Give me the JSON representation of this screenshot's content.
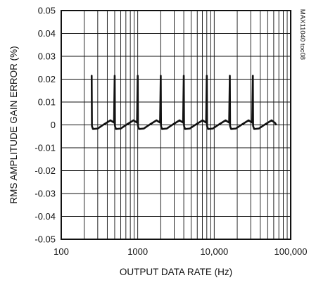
{
  "chart_data": {
    "type": "line",
    "title": "",
    "xlabel": "OUTPUT DATA RATE (Hz)",
    "ylabel": "RMS AMPLITUDE GAIN ERROR (%)",
    "x_scale": "log",
    "xlim": [
      100,
      100000
    ],
    "ylim": [
      -0.05,
      0.05
    ],
    "x_ticks": [
      100,
      1000,
      10000,
      100000
    ],
    "x_tick_labels": [
      "100",
      "1000",
      "10,000",
      "100,000"
    ],
    "y_ticks": [
      0.05,
      0.04,
      0.03,
      0.02,
      0.01,
      0,
      -0.01,
      -0.02,
      -0.03,
      -0.04,
      -0.05
    ],
    "y_tick_labels": [
      "0.05",
      "0.04",
      "0.03",
      "0.02",
      "0.01",
      "0",
      "-0.01",
      "-0.02",
      "-0.03",
      "-0.04",
      "-0.05"
    ],
    "grid": true,
    "watermark": "MAX11040 toc08",
    "series": [
      {
        "values": [
          [
            250,
            0.0215
          ],
          [
            252,
            -0.0005
          ],
          [
            260,
            -0.0018
          ],
          [
            300,
            -0.0016
          ],
          [
            360,
            0.0002
          ],
          [
            440,
            0.002
          ],
          [
            490,
            0.001
          ],
          [
            500,
            0.0215
          ],
          [
            504,
            -0.0005
          ],
          [
            520,
            -0.0018
          ],
          [
            600,
            -0.0016
          ],
          [
            720,
            0.0002
          ],
          [
            880,
            0.002
          ],
          [
            980,
            0.001
          ],
          [
            1000,
            0.0215
          ],
          [
            1008,
            -0.0005
          ],
          [
            1040,
            -0.0018
          ],
          [
            1200,
            -0.0016
          ],
          [
            1440,
            0.0002
          ],
          [
            1760,
            0.002
          ],
          [
            1960,
            0.001
          ],
          [
            2000,
            0.0215
          ],
          [
            2016,
            -0.0005
          ],
          [
            2080,
            -0.0018
          ],
          [
            2400,
            -0.0016
          ],
          [
            2880,
            0.0002
          ],
          [
            3520,
            0.002
          ],
          [
            3920,
            0.001
          ],
          [
            4000,
            0.0215
          ],
          [
            4032,
            -0.0005
          ],
          [
            4160,
            -0.0018
          ],
          [
            4800,
            -0.0016
          ],
          [
            5760,
            0.0002
          ],
          [
            7040,
            0.002
          ],
          [
            7840,
            0.001
          ],
          [
            8000,
            0.0215
          ],
          [
            8064,
            -0.0005
          ],
          [
            8320,
            -0.0018
          ],
          [
            9600,
            -0.0016
          ],
          [
            11520,
            0.0002
          ],
          [
            14080,
            0.002
          ],
          [
            15680,
            0.001
          ],
          [
            16000,
            0.0215
          ],
          [
            16128,
            -0.0005
          ],
          [
            16640,
            -0.0018
          ],
          [
            19200,
            -0.0016
          ],
          [
            23040,
            0.0002
          ],
          [
            28160,
            0.002
          ],
          [
            31360,
            0.001
          ],
          [
            32000,
            0.0215
          ],
          [
            32256,
            -0.0005
          ],
          [
            33280,
            -0.0018
          ],
          [
            38400,
            -0.0016
          ],
          [
            46080,
            0.0002
          ],
          [
            56320,
            0.002
          ],
          [
            62720,
            0.0008
          ],
          [
            64000,
            0.0002
          ]
        ]
      }
    ]
  }
}
